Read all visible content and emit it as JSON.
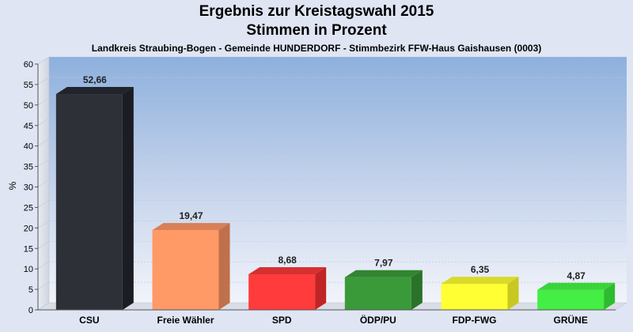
{
  "title": "Ergebnis zur Kreistagswahl 2015",
  "subtitle_line": "Stimmen in Prozent",
  "description": "Landkreis Straubing-Bogen - Gemeinde HUNDERDORF - Stimmbezirk FFW-Haus Gaishausen (0003)",
  "chart_data": {
    "type": "bar",
    "title": "Ergebnis zur Kreistagswahl 2015",
    "ylabel": "%",
    "xlabel": "",
    "ylim": [
      0,
      60
    ],
    "yticks": [
      0,
      5,
      10,
      15,
      20,
      25,
      30,
      35,
      40,
      45,
      50,
      55,
      60
    ],
    "grid": true,
    "categories": [
      "CSU",
      "Freie Wähler",
      "SPD",
      "ÖDP/PU",
      "FDP-FWG",
      "GRÜNE"
    ],
    "values": [
      52.66,
      19.47,
      8.68,
      7.97,
      6.35,
      4.87
    ],
    "value_labels": [
      "52,66",
      "19,47",
      "8,68",
      "7,97",
      "6,35",
      "4,87"
    ],
    "colors": [
      "#2e3038",
      "#ff9966",
      "#ff3b3b",
      "#3a9a3a",
      "#ffff33",
      "#44ee44"
    ],
    "side_colors": [
      "#1c1d24",
      "#c0704a",
      "#c02424",
      "#2a722a",
      "#c8c822",
      "#2fbb2f"
    ],
    "top_colors": [
      "#22242b",
      "#d88058",
      "#d63030",
      "#318631",
      "#dada2b",
      "#3ad43a"
    ]
  }
}
